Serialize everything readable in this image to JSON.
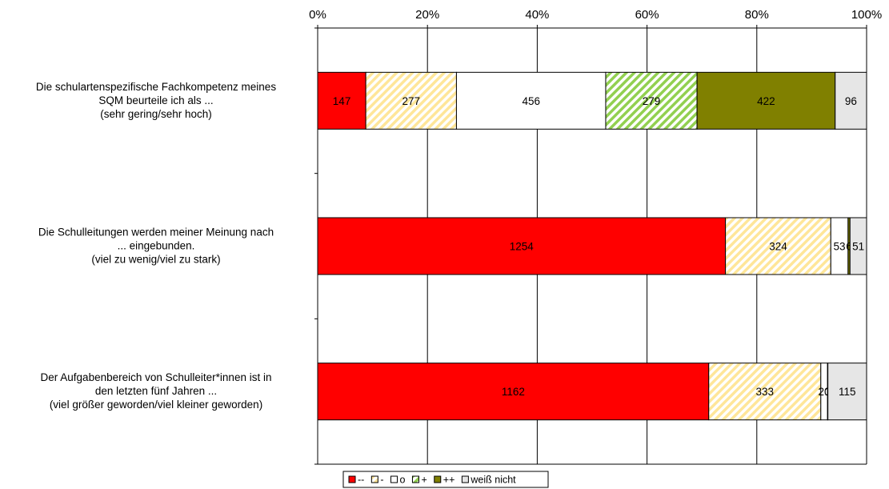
{
  "chart_data": {
    "type": "bar",
    "orientation": "horizontal",
    "stacked": "percent",
    "xlim": [
      0,
      100
    ],
    "x_ticks": [
      "0%",
      "20%",
      "40%",
      "60%",
      "80%",
      "100%"
    ],
    "grid": true,
    "legend_position": "bottom",
    "categories": [
      [
        "Die schulartenspezifische Fachkompetenz meines",
        "SQM beurteile ich als ...",
        "(sehr gering/sehr hoch)"
      ],
      [
        "Die Schulleitungen werden meiner Meinung nach",
        "... eingebunden.",
        "(viel zu wenig/viel zu stark)"
      ],
      [
        "Der Aufgabenbereich von Schulleiter*innen ist in",
        "den letzten fünf Jahren ...",
        "(viel größer geworden/viel kleiner geworden)"
      ]
    ],
    "series": [
      {
        "name": "--",
        "color": "#ff0000",
        "pattern": "solid",
        "values": [
          147,
          1254,
          1162
        ]
      },
      {
        "name": "-",
        "color": "#ffe699",
        "pattern": "hatch",
        "values": [
          277,
          324,
          333
        ]
      },
      {
        "name": "o",
        "color": "#ffffff",
        "pattern": "solid",
        "values": [
          456,
          53,
          20
        ]
      },
      {
        "name": "+",
        "color": "#92d050",
        "pattern": "hatch",
        "values": [
          279,
          0,
          0
        ]
      },
      {
        "name": "++",
        "color": "#808000",
        "pattern": "solid",
        "values": [
          422,
          6,
          1
        ]
      },
      {
        "name": "weiß nicht",
        "color": "#e6e6e6",
        "pattern": "solid",
        "values": [
          96,
          51,
          115
        ]
      }
    ],
    "data_labels": [
      [
        "147",
        "277",
        "456",
        "279",
        "422",
        "96"
      ],
      [
        "1254",
        "324",
        "53",
        "",
        "6",
        "51"
      ],
      [
        "1162",
        "333",
        "20",
        "",
        "1",
        "115"
      ]
    ]
  }
}
